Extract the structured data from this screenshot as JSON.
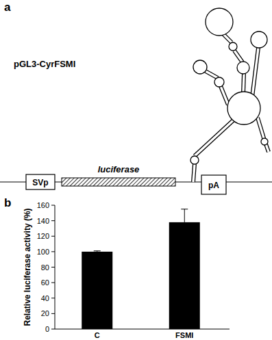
{
  "panel_labels": [
    "a",
    "b"
  ],
  "diagram": {
    "construct": "pGL3-CyrFSMI",
    "promoter": "SVp",
    "gene": "luciferase",
    "polyA": "pA"
  },
  "chart_data": {
    "type": "bar",
    "categories": [
      "C",
      "FSMI"
    ],
    "values": [
      100,
      138
    ],
    "errors": [
      1,
      17
    ],
    "color": "#000000",
    "ylim": [
      0,
      160
    ],
    "yticks": [
      0,
      20,
      40,
      60,
      80,
      100,
      120,
      140,
      160
    ],
    "y_label": "Relative luciferase activity (%)"
  }
}
